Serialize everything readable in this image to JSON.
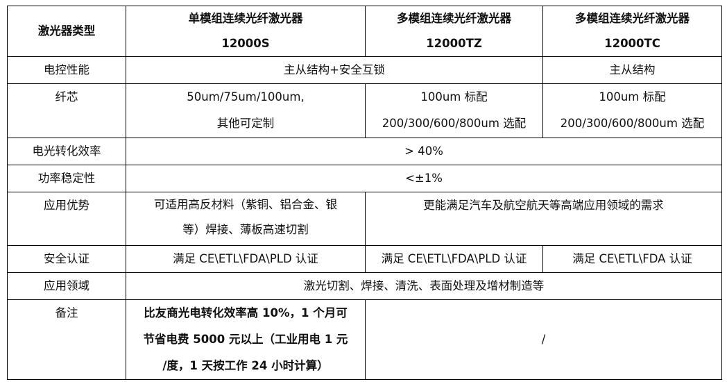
{
  "header": {
    "label": "激光器类型",
    "models": [
      {
        "name": "单模组连续光纤激光器",
        "code": "12000S"
      },
      {
        "name": "多模组连续光纤激光器",
        "code": "12000TZ"
      },
      {
        "name": "多模组连续光纤激光器",
        "code": "12000TC"
      }
    ]
  },
  "rows": {
    "control": {
      "label": "电控性能",
      "a": "主从结构+安全互锁",
      "b": "主从结构"
    },
    "fiber": {
      "label": "纤芯",
      "s": [
        "50um/75um/100um,",
        "其他可定制"
      ],
      "tz": [
        "100um 标配",
        "200/300/600/800um 选配"
      ],
      "tc": [
        "100um 标配",
        "200/300/600/800um 选配"
      ]
    },
    "efficiency": {
      "label": "电光转化效率",
      "value": "> 40%"
    },
    "stability": {
      "label": "功率稳定性",
      "value": "<±1%"
    },
    "advantage": {
      "label": "应用优势",
      "s": [
        "可适用高反材料（紫铜、铝合金、银",
        "等）焊接、薄板高速切割"
      ],
      "t": "更能满足汽车及航空航天等高端应用领域的需求"
    },
    "safety": {
      "label": "安全认证",
      "s": "满足 CE\\ETL\\FDA\\PLD 认证",
      "tz": "满足 CE\\ETL\\FDA\\PLD 认证",
      "tc": "满足 CE\\ETL\\FDA 认证"
    },
    "field": {
      "label": "应用领域",
      "value": "激光切割、焊接、清洗、表面处理及增材制造等"
    },
    "note": {
      "label": "备注",
      "s": [
        "比友商光电转化效率高 10%，1 个月可",
        "节省电费 5000 元以上（工业用电 1 元",
        "/度，1 天按工作 24 小时计算）"
      ],
      "t": "/"
    }
  }
}
